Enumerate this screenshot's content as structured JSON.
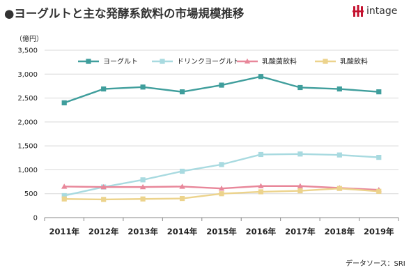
{
  "header": {
    "title": "●ヨーグルトと主な発酵系飲料の市場規模推移",
    "logo_text": "intage"
  },
  "source_note": "データソース：SRI",
  "colors": {
    "ヨーグルト": "#3f9e9c",
    "ドリンクヨーグルト": "#a8dae0",
    "乳酸菌飲料": "#e8879a",
    "乳酸飲料": "#ecd38c",
    "axis": "#888888",
    "grid": "#d8d8d8",
    "logo_red": "#c4122f"
  },
  "chart_data": {
    "type": "line",
    "title": "",
    "xlabel": "",
    "ylabel": "（億円）",
    "categories": [
      "2011年",
      "2012年",
      "2013年",
      "2014年",
      "2015年",
      "2016年",
      "2017年",
      "2018年",
      "2019年"
    ],
    "ylim": [
      0,
      3500
    ],
    "yticks": [
      0,
      500,
      1000,
      1500,
      2000,
      2500,
      3000,
      3500
    ],
    "ytick_labels": [
      "0",
      "500",
      "1,000",
      "1,500",
      "2,000",
      "2,500",
      "3,000",
      "3,500"
    ],
    "grid": "horizontal",
    "legend": "top",
    "series": [
      {
        "name": "ヨーグルト",
        "marker": "square",
        "values": [
          2400,
          2690,
          2730,
          2630,
          2770,
          2950,
          2720,
          2690,
          2630
        ]
      },
      {
        "name": "ドリンクヨーグルト",
        "marker": "square",
        "values": [
          460,
          640,
          790,
          970,
          1110,
          1320,
          1330,
          1310,
          1260
        ]
      },
      {
        "name": "乳酸菌飲料",
        "marker": "triangle",
        "values": [
          650,
          640,
          640,
          650,
          610,
          660,
          660,
          620,
          580
        ]
      },
      {
        "name": "乳酸飲料",
        "marker": "square",
        "values": [
          390,
          380,
          390,
          400,
          500,
          540,
          560,
          610,
          550
        ]
      }
    ]
  }
}
